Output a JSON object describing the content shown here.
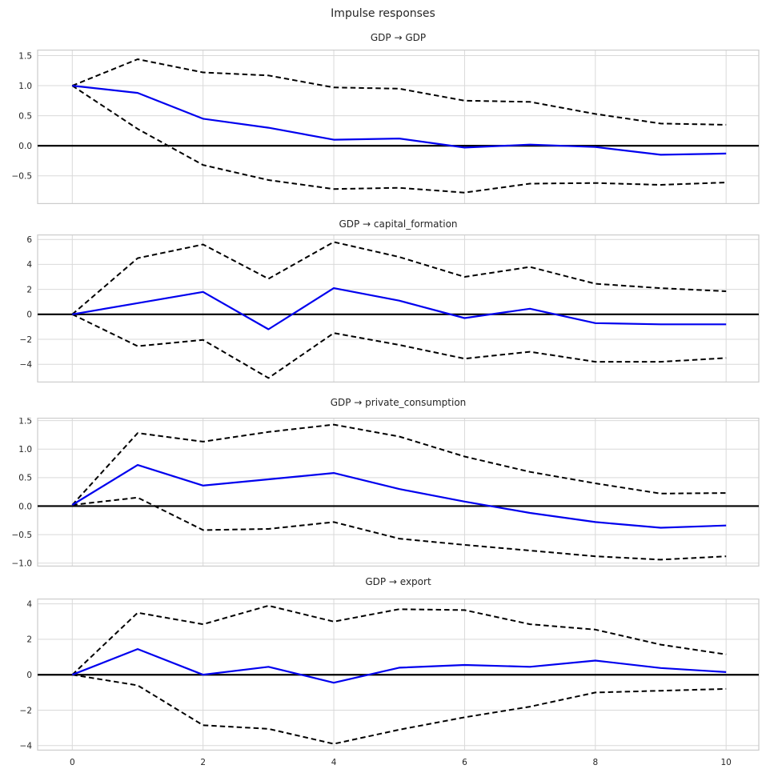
{
  "figure": {
    "title": "Impulse responses",
    "xlim": [
      -0.53,
      10.5
    ],
    "x_ticks": [
      0,
      2,
      4,
      6,
      8,
      10
    ],
    "x_tick_labels": [
      "0",
      "2",
      "4",
      "6",
      "8",
      "10"
    ],
    "grid": true,
    "legend": "none",
    "colors": {
      "response_line": "#0000ee",
      "band_line": "#000000",
      "zero_line": "#000000",
      "grid_line": "#d9d9d9",
      "spine": "#cccccc",
      "text": "#262626"
    }
  },
  "chart_data": [
    {
      "type": "line",
      "title": "GDP → GDP",
      "x": [
        0,
        1,
        2,
        3,
        4,
        5,
        6,
        7,
        8,
        9,
        10
      ],
      "ylim": [
        -0.97,
        1.6
      ],
      "yticks": [
        1.5,
        1.0,
        0.5,
        0.0,
        -0.5
      ],
      "ytick_labels": [
        "1.5",
        "1.0",
        "0.5",
        "0.0",
        "−0.5"
      ],
      "zero_line": true,
      "series": [
        {
          "name": "lower-band",
          "color": "#000000",
          "dash": "6.5 4",
          "width": 2,
          "values": [
            1.0,
            0.28,
            -0.32,
            -0.57,
            -0.72,
            -0.7,
            -0.78,
            -0.63,
            -0.62,
            -0.65,
            -0.61
          ]
        },
        {
          "name": "upper-band",
          "color": "#000000",
          "dash": "6.5 4",
          "width": 2,
          "values": [
            1.0,
            1.44,
            1.22,
            1.17,
            0.97,
            0.95,
            0.75,
            0.73,
            0.53,
            0.37,
            0.35
          ]
        },
        {
          "name": "impulse-response",
          "color": "#0000ee",
          "dash": null,
          "width": 2.2,
          "values": [
            1.0,
            0.88,
            0.45,
            0.3,
            0.1,
            0.12,
            -0.03,
            0.02,
            -0.02,
            -0.15,
            -0.13
          ]
        }
      ]
    },
    {
      "type": "line",
      "title": "GDP → capital_formation",
      "x": [
        0,
        1,
        2,
        3,
        4,
        5,
        6,
        7,
        8,
        9,
        10
      ],
      "ylim": [
        -5.46,
        6.4
      ],
      "yticks": [
        6,
        4,
        2,
        0,
        -2,
        -4
      ],
      "ytick_labels": [
        "6",
        "4",
        "2",
        "0",
        "−2",
        "−4"
      ],
      "zero_line": true,
      "series": [
        {
          "name": "lower-band",
          "color": "#000000",
          "dash": "6.5 4",
          "width": 2,
          "values": [
            0.0,
            -2.55,
            -2.05,
            -5.1,
            -1.5,
            -2.45,
            -3.55,
            -3.0,
            -3.8,
            -3.8,
            -3.5
          ]
        },
        {
          "name": "upper-band",
          "color": "#000000",
          "dash": "6.5 4",
          "width": 2,
          "values": [
            0.0,
            4.5,
            5.6,
            2.85,
            5.8,
            4.6,
            3.0,
            3.8,
            2.45,
            2.1,
            1.85
          ]
        },
        {
          "name": "impulse-response",
          "color": "#0000ee",
          "dash": null,
          "width": 2.2,
          "values": [
            0.0,
            0.9,
            1.8,
            -1.2,
            2.1,
            1.1,
            -0.3,
            0.45,
            -0.7,
            -0.8,
            -0.8
          ]
        }
      ]
    },
    {
      "type": "line",
      "title": "GDP → private_consumption",
      "x": [
        0,
        1,
        2,
        3,
        4,
        5,
        6,
        7,
        8,
        9,
        10
      ],
      "ylim": [
        -1.06,
        1.55
      ],
      "yticks": [
        1.5,
        1.0,
        0.5,
        0.0,
        -0.5,
        -1.0
      ],
      "ytick_labels": [
        "1.5",
        "1.0",
        "0.5",
        "0.0",
        "−0.5",
        "−1.0"
      ],
      "zero_line": true,
      "series": [
        {
          "name": "lower-band",
          "color": "#000000",
          "dash": "6.5 4",
          "width": 2,
          "values": [
            0.02,
            0.15,
            -0.42,
            -0.4,
            -0.28,
            -0.57,
            -0.68,
            -0.78,
            -0.88,
            -0.94,
            -0.88
          ]
        },
        {
          "name": "upper-band",
          "color": "#000000",
          "dash": "6.5 4",
          "width": 2,
          "values": [
            0.02,
            1.28,
            1.13,
            1.3,
            1.43,
            1.22,
            0.87,
            0.6,
            0.4,
            0.22,
            0.23
          ]
        },
        {
          "name": "impulse-response",
          "color": "#0000ee",
          "dash": null,
          "width": 2.2,
          "values": [
            0.02,
            0.72,
            0.36,
            0.47,
            0.58,
            0.3,
            0.08,
            -0.12,
            -0.28,
            -0.38,
            -0.34
          ]
        }
      ]
    },
    {
      "type": "line",
      "title": "GDP → export",
      "x": [
        0,
        1,
        2,
        3,
        4,
        5,
        6,
        7,
        8,
        9,
        10
      ],
      "ylim": [
        -4.28,
        4.3
      ],
      "yticks": [
        4,
        2,
        0,
        -2,
        -4
      ],
      "ytick_labels": [
        "4",
        "2",
        "0",
        "−2",
        "−4"
      ],
      "zero_line": true,
      "series": [
        {
          "name": "lower-band",
          "color": "#000000",
          "dash": "6.5 4",
          "width": 2,
          "values": [
            0.0,
            -0.6,
            -2.85,
            -3.05,
            -3.9,
            -3.1,
            -2.4,
            -1.8,
            -1.0,
            -0.9,
            -0.8
          ]
        },
        {
          "name": "upper-band",
          "color": "#000000",
          "dash": "6.5 4",
          "width": 2,
          "values": [
            0.0,
            3.5,
            2.85,
            3.9,
            3.0,
            3.7,
            3.65,
            2.85,
            2.55,
            1.7,
            1.15
          ]
        },
        {
          "name": "impulse-response",
          "color": "#0000ee",
          "dash": null,
          "width": 2.2,
          "values": [
            0.0,
            1.45,
            0.0,
            0.45,
            -0.45,
            0.4,
            0.55,
            0.45,
            0.8,
            0.38,
            0.15
          ]
        }
      ]
    }
  ]
}
